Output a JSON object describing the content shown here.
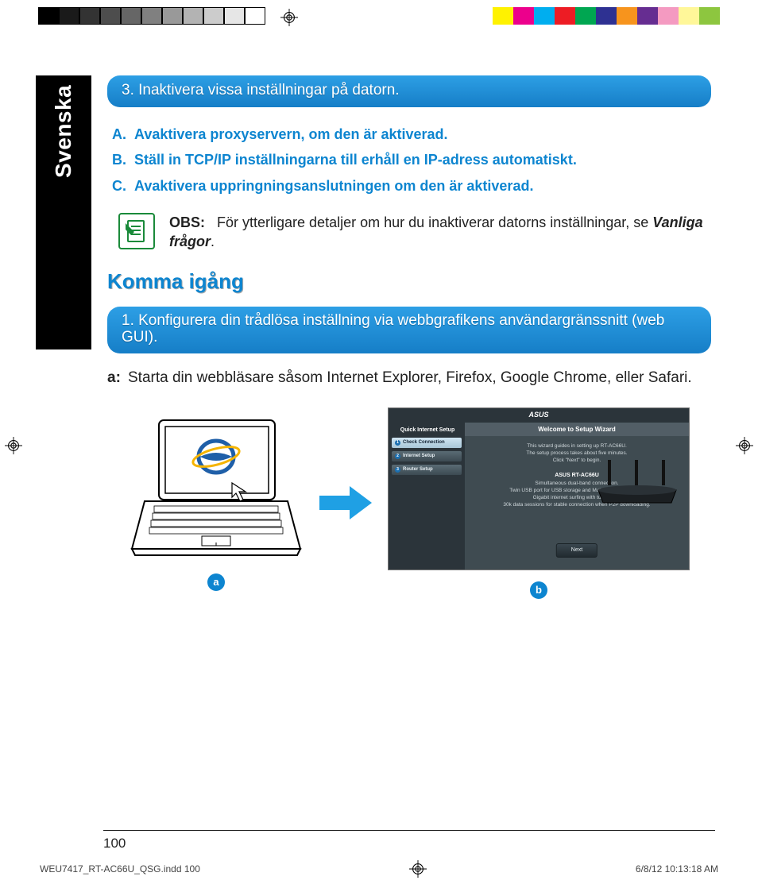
{
  "print": {
    "left_swatches": [
      "#000000",
      "#1a1a1a",
      "#333333",
      "#4d4d4d",
      "#666666",
      "#808080",
      "#999999",
      "#b3b3b3",
      "#cccccc",
      "#e6e6e6",
      "#ffffff"
    ],
    "right_swatches": [
      "#fff200",
      "#ec008c",
      "#00aeef",
      "#ed1c24",
      "#00a651",
      "#2e3192",
      "#f7941d",
      "#662d91",
      "#f49ac1",
      "#fff799",
      "#8dc63f"
    ],
    "footer_file": "WEU7417_RT-AC66U_QSG.indd   100",
    "footer_date": "6/8/12   10:13:18 AM"
  },
  "language_tab": "Svenska",
  "blue_bar_1": "3.  Inaktivera vissa inställningar på datorn.",
  "sublist": [
    {
      "k": "A.",
      "t": "Avaktivera proxyservern, om den är aktiverad."
    },
    {
      "k": "B.",
      "t": "Ställ in TCP/IP inställningarna till erhåll en IP-adress automatiskt."
    },
    {
      "k": "C.",
      "t": "Avaktivera uppringningsanslutningen om den är aktiverad."
    }
  ],
  "note": {
    "label": "OBS:",
    "text_a": "För ytterligare detaljer om hur du inaktiverar datorns inställningar, se ",
    "text_b": "Vanliga frågor",
    "text_c": "."
  },
  "heading": "Komma igång",
  "blue_bar_2": "1.  Konfigurera din trådlösa inställning via webbgrafikens användargränssnitt (web GUI).",
  "step_a": {
    "k": "a:",
    "t": "Starta din webbläsare såsom Internet Explorer, Firefox, Google Chrome, eller Safari."
  },
  "wizard": {
    "brand": "ASUS",
    "side_title": "Quick Internet Setup",
    "side_items": [
      "Check Connection",
      "Internet Setup",
      "Router Setup"
    ],
    "main_title": "Welcome to Setup Wizard",
    "line1": "This wizard guides in setting up RT-AC66U.",
    "line2": "The setup process takes about five minutes.",
    "line3": "Click \"Next\" to begin.",
    "model": "ASUS RT-AC66U",
    "desc1": "Simultaneous dual-band connection.",
    "desc2": "Twin USB port for USB storage and Multi-functional printer.",
    "desc3": "Gigabit internet surfing with turbo NAT.",
    "desc4": "30k data sessions for stable connection when P2P downloading.",
    "next": "Next"
  },
  "labels": {
    "a": "a",
    "b": "b"
  },
  "page_number": "100"
}
